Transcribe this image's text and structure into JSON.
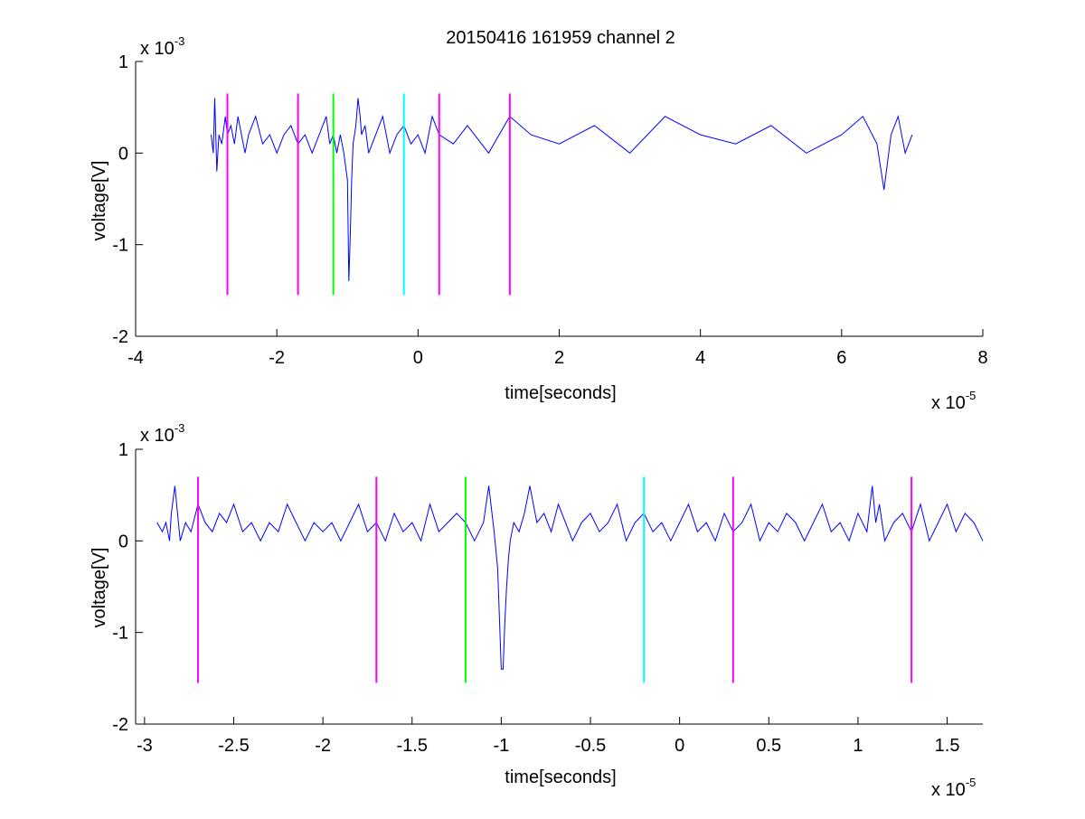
{
  "figure": {
    "title": "20150416 161959 channel 2"
  },
  "chart_data": [
    {
      "type": "line",
      "xlabel": "time[seconds]",
      "ylabel": "voltage[V]",
      "x_exponent_label": "x 10",
      "x_exponent": "-5",
      "y_exponent_label": "x 10",
      "y_exponent": "-3",
      "xlim": [
        -4,
        8
      ],
      "ylim": [
        -2,
        1
      ],
      "xticks": [
        -4,
        -2,
        0,
        2,
        4,
        6,
        8
      ],
      "xtick_labels": [
        "-4",
        "-2",
        "0",
        "2",
        "4",
        "6",
        "8"
      ],
      "yticks": [
        -2,
        -1,
        0,
        1
      ],
      "ytick_labels": [
        "-2",
        "-1",
        "0",
        "1"
      ],
      "grid": false,
      "colors": {
        "signal": "#0000ff",
        "marker_magenta": "#ff00ff",
        "marker_green": "#00ff00",
        "marker_cyan": "#00ffff"
      },
      "signal": {
        "x": [
          -2.93,
          -2.9,
          -2.88,
          -2.85,
          -2.82,
          -2.78,
          -2.73,
          -2.7,
          -2.65,
          -2.6,
          -2.55,
          -2.5,
          -2.45,
          -2.4,
          -2.3,
          -2.2,
          -2.1,
          -2.0,
          -1.9,
          -1.8,
          -1.7,
          -1.6,
          -1.5,
          -1.4,
          -1.3,
          -1.25,
          -1.2,
          -1.15,
          -1.1,
          -1.05,
          -1.0,
          -0.98,
          -0.96,
          -0.94,
          -0.92,
          -0.9,
          -0.88,
          -0.85,
          -0.82,
          -0.8,
          -0.75,
          -0.7,
          -0.6,
          -0.5,
          -0.4,
          -0.3,
          -0.2,
          -0.1,
          0.0,
          0.1,
          0.2,
          0.3,
          0.5,
          0.7,
          1.0,
          1.3,
          1.6,
          2.0,
          2.5,
          3.0,
          3.5,
          4.0,
          4.5,
          5.0,
          5.5,
          6.0,
          6.3,
          6.5,
          6.6,
          6.7,
          6.8,
          6.9,
          7.0
        ],
        "y": [
          0.2,
          0.0,
          0.6,
          -0.2,
          0.2,
          0.1,
          0.4,
          0.2,
          0.3,
          0.1,
          0.4,
          0.2,
          0.0,
          0.2,
          0.4,
          0.1,
          0.2,
          0.0,
          0.2,
          0.3,
          0.1,
          0.2,
          0.0,
          0.2,
          0.4,
          0.1,
          0.2,
          0.0,
          0.2,
          0.0,
          -0.3,
          -1.4,
          -0.9,
          -0.3,
          0.1,
          0.2,
          0.3,
          0.6,
          0.4,
          0.2,
          0.3,
          0.0,
          0.2,
          0.4,
          0.0,
          0.2,
          0.3,
          0.1,
          0.2,
          0.0,
          0.4,
          0.2,
          0.1,
          0.3,
          0.0,
          0.4,
          0.2,
          0.1,
          0.3,
          0.0,
          0.4,
          0.2,
          0.1,
          0.3,
          0.0,
          0.2,
          0.4,
          0.1,
          -0.4,
          0.2,
          0.4,
          0.0,
          0.2
        ]
      },
      "markers": [
        {
          "x": -2.7,
          "color": "#ff00ff"
        },
        {
          "x": -1.7,
          "color": "#ff00ff"
        },
        {
          "x": -1.2,
          "color": "#00ff00"
        },
        {
          "x": -0.2,
          "color": "#00ffff"
        },
        {
          "x": 0.3,
          "color": "#ff00ff"
        },
        {
          "x": 1.3,
          "color": "#ff00ff"
        }
      ],
      "marker_range": [
        -1.55,
        0.65
      ]
    },
    {
      "type": "line",
      "xlabel": "time[seconds]",
      "ylabel": "voltage[V]",
      "x_exponent_label": "x 10",
      "x_exponent": "-5",
      "y_exponent_label": "x 10",
      "y_exponent": "-3",
      "xlim": [
        -3.05,
        1.7
      ],
      "ylim": [
        -2,
        1
      ],
      "xticks": [
        -3,
        -2.5,
        -2,
        -1.5,
        -1,
        -0.5,
        0,
        0.5,
        1,
        1.5
      ],
      "xtick_labels": [
        "-3",
        "-2.5",
        "-2",
        "-1.5",
        "-1",
        "-0.5",
        "0",
        "0.5",
        "1",
        "1.5"
      ],
      "yticks": [
        -2,
        -1,
        0,
        1
      ],
      "ytick_labels": [
        "-2",
        "-1",
        "0",
        "1"
      ],
      "grid": false,
      "colors": {
        "signal": "#0000ff",
        "marker_magenta": "#ff00ff",
        "marker_green": "#00ff00",
        "marker_cyan": "#00ffff"
      },
      "signal": {
        "x": [
          -2.93,
          -2.9,
          -2.88,
          -2.86,
          -2.85,
          -2.83,
          -2.8,
          -2.77,
          -2.74,
          -2.7,
          -2.66,
          -2.62,
          -2.58,
          -2.54,
          -2.5,
          -2.45,
          -2.4,
          -2.35,
          -2.3,
          -2.25,
          -2.2,
          -2.15,
          -2.1,
          -2.05,
          -2.0,
          -1.95,
          -1.9,
          -1.85,
          -1.8,
          -1.75,
          -1.7,
          -1.65,
          -1.6,
          -1.55,
          -1.5,
          -1.45,
          -1.4,
          -1.35,
          -1.3,
          -1.25,
          -1.2,
          -1.15,
          -1.1,
          -1.07,
          -1.04,
          -1.02,
          -1.0,
          -0.99,
          -0.98,
          -0.97,
          -0.96,
          -0.95,
          -0.93,
          -0.9,
          -0.87,
          -0.84,
          -0.82,
          -0.8,
          -0.76,
          -0.72,
          -0.68,
          -0.64,
          -0.6,
          -0.55,
          -0.5,
          -0.45,
          -0.4,
          -0.35,
          -0.3,
          -0.25,
          -0.2,
          -0.15,
          -0.1,
          -0.05,
          0.0,
          0.05,
          0.1,
          0.15,
          0.2,
          0.25,
          0.3,
          0.35,
          0.4,
          0.45,
          0.5,
          0.55,
          0.6,
          0.65,
          0.7,
          0.75,
          0.8,
          0.85,
          0.9,
          0.95,
          1.0,
          1.05,
          1.08,
          1.1,
          1.12,
          1.15,
          1.2,
          1.25,
          1.3,
          1.35,
          1.4,
          1.45,
          1.5,
          1.55,
          1.6,
          1.65,
          1.7
        ],
        "y": [
          0.2,
          0.1,
          0.2,
          0.0,
          0.3,
          0.6,
          0.0,
          0.2,
          0.1,
          0.4,
          0.2,
          0.1,
          0.3,
          0.2,
          0.4,
          0.1,
          0.2,
          0.0,
          0.2,
          0.1,
          0.4,
          0.2,
          0.0,
          0.2,
          0.1,
          0.2,
          0.0,
          0.2,
          0.4,
          0.1,
          0.2,
          0.0,
          0.3,
          0.1,
          0.2,
          0.0,
          0.4,
          0.1,
          0.2,
          0.3,
          0.2,
          0.0,
          0.2,
          0.6,
          0.1,
          -0.3,
          -1.4,
          -1.4,
          -0.9,
          -0.5,
          -0.2,
          0.0,
          0.2,
          0.1,
          0.3,
          0.6,
          0.4,
          0.2,
          0.3,
          0.1,
          0.4,
          0.2,
          0.0,
          0.2,
          0.3,
          0.1,
          0.2,
          0.4,
          0.0,
          0.2,
          0.3,
          0.1,
          0.2,
          0.0,
          0.2,
          0.4,
          0.1,
          0.2,
          0.0,
          0.3,
          0.1,
          0.2,
          0.4,
          0.0,
          0.2,
          0.1,
          0.3,
          0.2,
          0.0,
          0.2,
          0.4,
          0.1,
          0.2,
          0.0,
          0.3,
          0.1,
          0.6,
          0.2,
          0.4,
          0.0,
          0.2,
          0.3,
          0.1,
          0.4,
          0.0,
          0.2,
          0.4,
          0.1,
          0.3,
          0.2,
          0.0
        ]
      },
      "markers": [
        {
          "x": -2.7,
          "color": "#ff00ff"
        },
        {
          "x": -1.7,
          "color": "#ff00ff"
        },
        {
          "x": -1.2,
          "color": "#00ff00"
        },
        {
          "x": -0.2,
          "color": "#00ffff"
        },
        {
          "x": 0.3,
          "color": "#ff00ff"
        },
        {
          "x": 1.3,
          "color": "#ff00ff"
        }
      ],
      "marker_range": [
        -1.55,
        0.7
      ]
    }
  ]
}
